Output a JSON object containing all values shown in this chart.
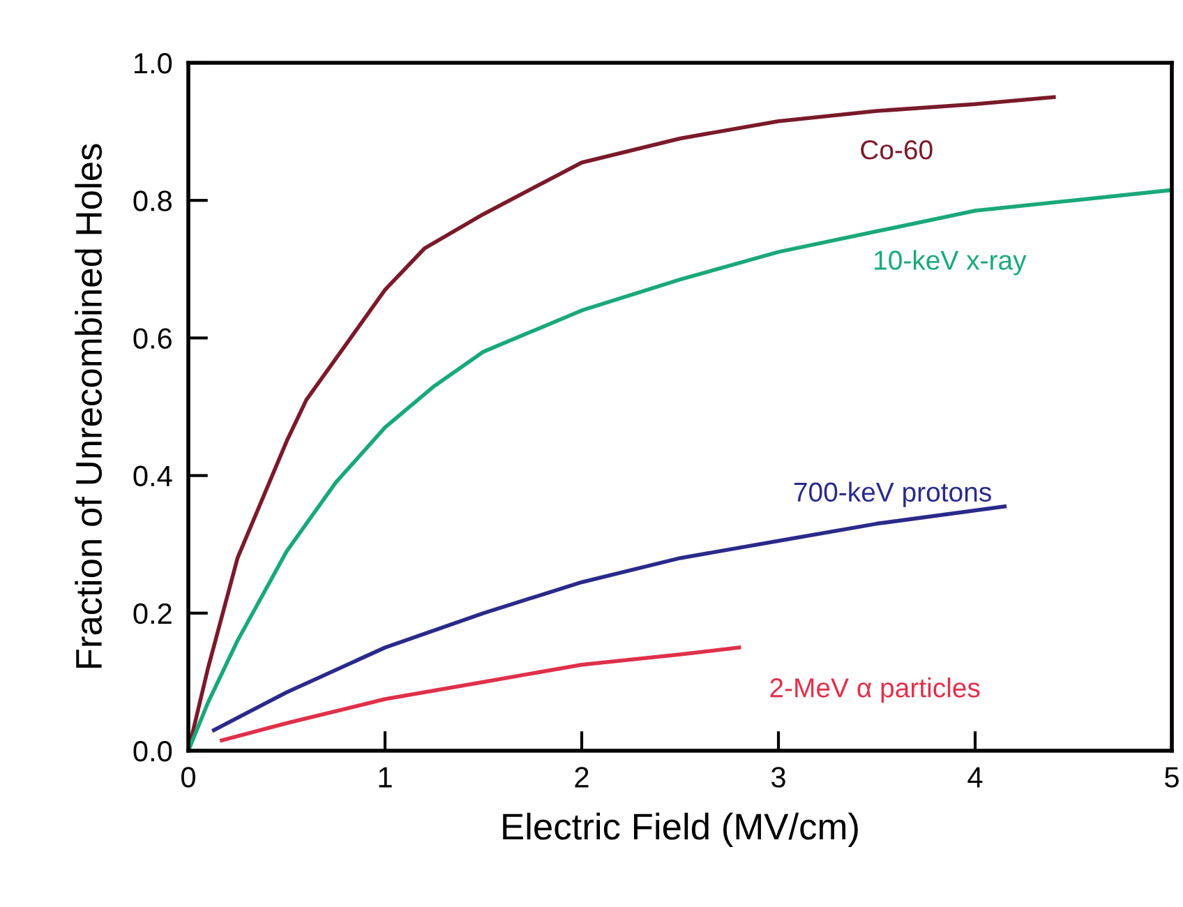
{
  "chart_data": {
    "type": "line",
    "xlabel": "Electric Field (MV/cm)",
    "ylabel": "Fraction of Unrecombined Holes",
    "xlim": [
      0,
      5
    ],
    "xticks": [
      0,
      1,
      2,
      3,
      4,
      5
    ],
    "ylim": [
      0,
      1.0
    ],
    "yticks": [
      {
        "value": 0,
        "label": "0.0"
      },
      0.2,
      0.4,
      0.6,
      0.8,
      {
        "value": 1.0,
        "label": "1.0"
      }
    ],
    "grid": false,
    "legend": false,
    "marker": "none",
    "line_style": "solid",
    "series": [
      {
        "name": "Co-60",
        "color": "#7a1a2a",
        "x": [
          0,
          0.1,
          0.25,
          0.5,
          0.6,
          0.8,
          1.0,
          1.2,
          1.5,
          2.0,
          2.5,
          3.0,
          3.5,
          4.0,
          4.4
        ],
        "values": [
          0,
          0.12,
          0.28,
          0.45,
          0.51,
          0.59,
          0.67,
          0.73,
          0.78,
          0.855,
          0.89,
          0.915,
          0.93,
          0.94,
          0.95
        ]
      },
      {
        "name": "10-keV x-ray",
        "color": "#1aa87a",
        "x": [
          0,
          0.1,
          0.25,
          0.5,
          0.75,
          1.0,
          1.25,
          1.5,
          2.0,
          2.5,
          3.0,
          3.5,
          4.0,
          4.5,
          5.0
        ],
        "values": [
          0,
          0.07,
          0.16,
          0.29,
          0.39,
          0.47,
          0.53,
          0.58,
          0.64,
          0.685,
          0.725,
          0.755,
          0.785,
          0.8,
          0.815
        ]
      },
      {
        "name": "700-keV protons",
        "color": "#2a2a8a",
        "x": [
          0.13,
          0.5,
          1.0,
          1.5,
          2.0,
          2.5,
          3.0,
          3.5,
          4.15
        ],
        "values": [
          0.03,
          0.085,
          0.15,
          0.2,
          0.245,
          0.28,
          0.305,
          0.33,
          0.355
        ]
      },
      {
        "name": "2-MeV α particles",
        "color": "#e0304a",
        "x": [
          0.17,
          0.5,
          1.0,
          1.5,
          2.0,
          2.5,
          2.8
        ],
        "values": [
          0.015,
          0.04,
          0.075,
          0.1,
          0.125,
          0.14,
          0.15
        ]
      }
    ]
  }
}
